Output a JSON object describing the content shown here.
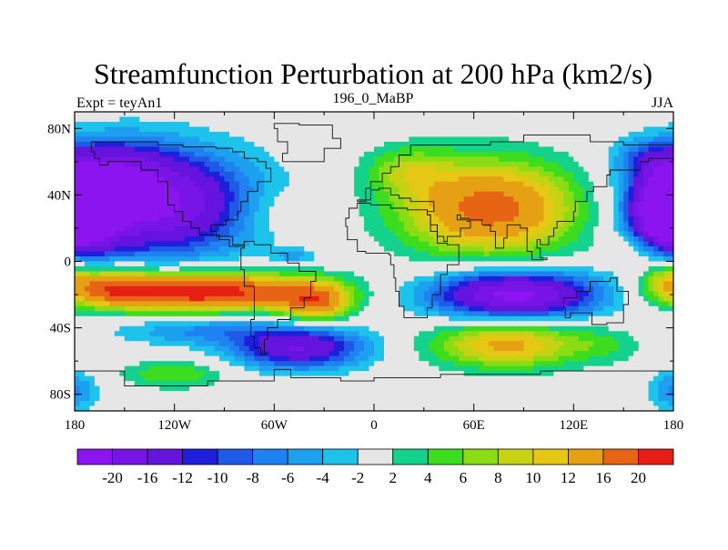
{
  "chart_data": {
    "type": "heatmap",
    "title": "Streamfunction Perturbation at 200 hPa (km2/s)",
    "left_label": "Expt = teyAn1",
    "center_label": "196_0_MaBP",
    "right_label": "JJA",
    "x_ticks": [
      "180",
      "120W",
      "60W",
      "0",
      "60E",
      "120E",
      "180"
    ],
    "x_tick_values": [
      -180,
      -120,
      -60,
      0,
      60,
      120,
      180
    ],
    "y_ticks": [
      "80N",
      "40N",
      "0",
      "40S",
      "80S"
    ],
    "y_tick_values": [
      80,
      40,
      0,
      -40,
      -80
    ],
    "xlim": [
      -180,
      180
    ],
    "ylim": [
      -90,
      90
    ],
    "colorbar": {
      "labels": [
        "-20",
        "-16",
        "-12",
        "-10",
        "-8",
        "-6",
        "-4",
        "-2",
        "2",
        "4",
        "6",
        "8",
        "10",
        "12",
        "16",
        "20"
      ],
      "colors": [
        "#8c14f0",
        "#7814e6",
        "#6414dc",
        "#1e1edc",
        "#1e5ae6",
        "#1e82f0",
        "#1ea0f0",
        "#1ec3eb",
        "#e6e6e6",
        "#14d28c",
        "#3cdc1e",
        "#8cdc14",
        "#c8d214",
        "#e6c814",
        "#e6a014",
        "#e66414",
        "#e61e14"
      ]
    },
    "anomalies": [
      {
        "lon": -135,
        "lat": 35,
        "amp": -22,
        "sx": 42,
        "sy": 22
      },
      {
        "lon": -160,
        "lat": 58,
        "amp": -8,
        "sx": 25,
        "sy": 12
      },
      {
        "lon": 180,
        "lat": 30,
        "amp": -18,
        "sx": 15,
        "sy": 15
      },
      {
        "lon": -180,
        "lat": 30,
        "amp": -18,
        "sx": 15,
        "sy": 15
      },
      {
        "lon": 165,
        "lat": 62,
        "amp": -6,
        "sx": 14,
        "sy": 8
      },
      {
        "lon": -105,
        "lat": -18,
        "amp": 24,
        "sx": 48,
        "sy": 8
      },
      {
        "lon": -35,
        "lat": -25,
        "amp": 14,
        "sx": 15,
        "sy": 8
      },
      {
        "lon": -160,
        "lat": -15,
        "amp": 10,
        "sx": 20,
        "sy": 8
      },
      {
        "lon": 70,
        "lat": 32,
        "amp": 18,
        "sx": 38,
        "sy": 20
      },
      {
        "lon": 20,
        "lat": 55,
        "amp": 6,
        "sx": 18,
        "sy": 10
      },
      {
        "lon": 85,
        "lat": -20,
        "amp": -22,
        "sx": 36,
        "sy": 10
      },
      {
        "lon": 175,
        "lat": -8,
        "amp": 6,
        "sx": 10,
        "sy": 8
      },
      {
        "lon": -45,
        "lat": -52,
        "amp": -16,
        "sx": 28,
        "sy": 9
      },
      {
        "lon": -105,
        "lat": -42,
        "amp": -6,
        "sx": 35,
        "sy": 6
      },
      {
        "lon": 80,
        "lat": -50,
        "amp": 13,
        "sx": 32,
        "sy": 10
      },
      {
        "lon": 140,
        "lat": -50,
        "amp": 3,
        "sx": 15,
        "sy": 8
      },
      {
        "lon": -120,
        "lat": -68,
        "amp": 6,
        "sx": 22,
        "sy": 6
      },
      {
        "lon": -48,
        "lat": 3,
        "amp": -5,
        "sx": 10,
        "sy": 3
      },
      {
        "lon": -60,
        "lat": 30,
        "amp": 3,
        "sx": 18,
        "sy": 10
      },
      {
        "lon": 160,
        "lat": 8,
        "amp": 3,
        "sx": 15,
        "sy": 6
      },
      {
        "lon": -180,
        "lat": -80,
        "amp": -4,
        "sx": 10,
        "sy": 8
      },
      {
        "lon": 180,
        "lat": -75,
        "amp": -3,
        "sx": 10,
        "sy": 8
      }
    ]
  }
}
